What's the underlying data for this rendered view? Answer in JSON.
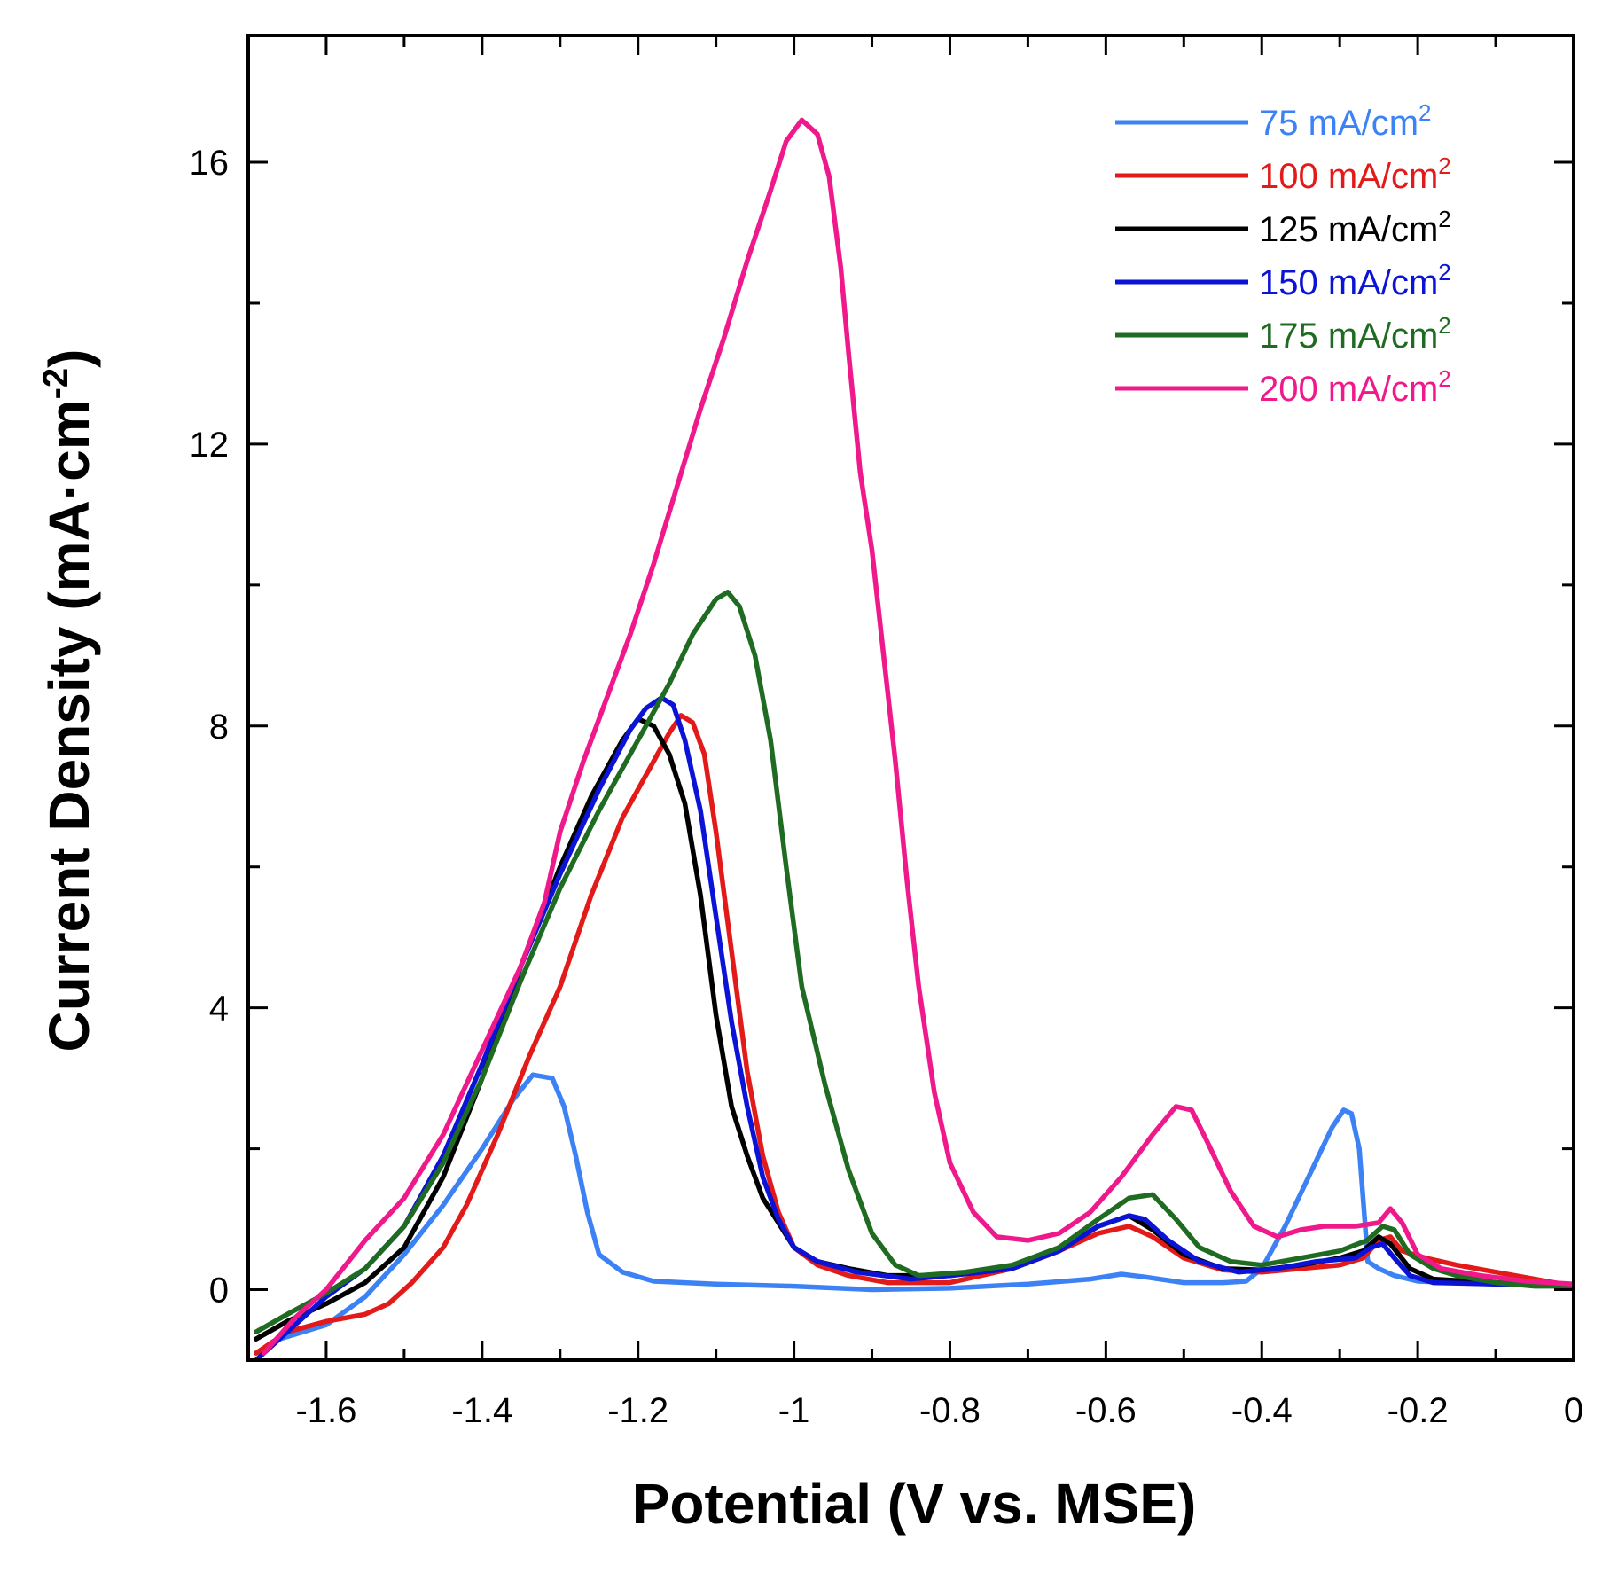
{
  "chart_data": {
    "type": "line",
    "xlabel": "Potential (V vs. MSE)",
    "ylabel_main": "Current Density (mA·cm",
    "ylabel_sup": "-2",
    "ylabel_close": ")",
    "xlim": [
      -1.7,
      0
    ],
    "ylim": [
      -1,
      17.8
    ],
    "x_ticks": [
      {
        "value": -1.6,
        "label": "-1.6"
      },
      {
        "value": -1.4,
        "label": "-1.4"
      },
      {
        "value": -1.2,
        "label": "-1.2"
      },
      {
        "value": -1.0,
        "label": "-1"
      },
      {
        "value": -0.8,
        "label": "-0.8"
      },
      {
        "value": -0.6,
        "label": "-0.6"
      },
      {
        "value": -0.4,
        "label": "-0.4"
      },
      {
        "value": -0.2,
        "label": "-0.2"
      },
      {
        "value": 0,
        "label": "0"
      }
    ],
    "y_ticks": [
      {
        "value": 0,
        "label": "0"
      },
      {
        "value": 4,
        "label": "4"
      },
      {
        "value": 8,
        "label": "8"
      },
      {
        "value": 12,
        "label": "12"
      },
      {
        "value": 16,
        "label": "16"
      }
    ],
    "x_minor_ticks": [
      -1.7,
      -1.5,
      -1.3,
      -1.1,
      -0.9,
      -0.7,
      -0.5,
      -0.3,
      -0.1
    ],
    "y_minor_ticks": [
      2,
      6,
      10,
      14
    ],
    "grid": false,
    "legend_position": "top-right",
    "series": [
      {
        "name": "75 mA/cm",
        "sup": "2",
        "color": "#3c82f5",
        "points": [
          [
            -1.69,
            -0.9
          ],
          [
            -1.66,
            -0.7
          ],
          [
            -1.6,
            -0.5
          ],
          [
            -1.55,
            -0.1
          ],
          [
            -1.5,
            0.5
          ],
          [
            -1.45,
            1.2
          ],
          [
            -1.4,
            2.0
          ],
          [
            -1.36,
            2.7
          ],
          [
            -1.335,
            3.05
          ],
          [
            -1.31,
            3.0
          ],
          [
            -1.295,
            2.6
          ],
          [
            -1.28,
            1.9
          ],
          [
            -1.265,
            1.1
          ],
          [
            -1.25,
            0.5
          ],
          [
            -1.22,
            0.25
          ],
          [
            -1.18,
            0.12
          ],
          [
            -1.1,
            0.08
          ],
          [
            -1.0,
            0.05
          ],
          [
            -0.9,
            0.0
          ],
          [
            -0.8,
            0.02
          ],
          [
            -0.7,
            0.08
          ],
          [
            -0.62,
            0.15
          ],
          [
            -0.58,
            0.22
          ],
          [
            -0.55,
            0.18
          ],
          [
            -0.5,
            0.1
          ],
          [
            -0.45,
            0.1
          ],
          [
            -0.42,
            0.12
          ],
          [
            -0.4,
            0.3
          ],
          [
            -0.37,
            0.9
          ],
          [
            -0.34,
            1.6
          ],
          [
            -0.31,
            2.3
          ],
          [
            -0.295,
            2.55
          ],
          [
            -0.285,
            2.5
          ],
          [
            -0.275,
            2.0
          ],
          [
            -0.268,
            1.0
          ],
          [
            -0.264,
            0.4
          ],
          [
            -0.25,
            0.3
          ],
          [
            -0.23,
            0.2
          ],
          [
            -0.2,
            0.12
          ],
          [
            -0.1,
            0.08
          ],
          [
            0,
            0.05
          ]
        ]
      },
      {
        "name": "100 mA/cm",
        "sup": "2",
        "color": "#e31a1a",
        "points": [
          [
            -1.69,
            -0.9
          ],
          [
            -1.65,
            -0.6
          ],
          [
            -1.6,
            -0.45
          ],
          [
            -1.55,
            -0.35
          ],
          [
            -1.52,
            -0.2
          ],
          [
            -1.49,
            0.1
          ],
          [
            -1.45,
            0.6
          ],
          [
            -1.42,
            1.2
          ],
          [
            -1.38,
            2.2
          ],
          [
            -1.34,
            3.3
          ],
          [
            -1.3,
            4.3
          ],
          [
            -1.26,
            5.6
          ],
          [
            -1.22,
            6.7
          ],
          [
            -1.18,
            7.5
          ],
          [
            -1.16,
            7.9
          ],
          [
            -1.145,
            8.15
          ],
          [
            -1.13,
            8.05
          ],
          [
            -1.115,
            7.6
          ],
          [
            -1.1,
            6.5
          ],
          [
            -1.08,
            4.8
          ],
          [
            -1.06,
            3.1
          ],
          [
            -1.04,
            1.9
          ],
          [
            -1.02,
            1.1
          ],
          [
            -1.0,
            0.6
          ],
          [
            -0.97,
            0.35
          ],
          [
            -0.93,
            0.2
          ],
          [
            -0.88,
            0.1
          ],
          [
            -0.8,
            0.1
          ],
          [
            -0.72,
            0.3
          ],
          [
            -0.66,
            0.55
          ],
          [
            -0.61,
            0.8
          ],
          [
            -0.57,
            0.9
          ],
          [
            -0.54,
            0.75
          ],
          [
            -0.5,
            0.45
          ],
          [
            -0.45,
            0.28
          ],
          [
            -0.4,
            0.25
          ],
          [
            -0.35,
            0.3
          ],
          [
            -0.3,
            0.35
          ],
          [
            -0.27,
            0.45
          ],
          [
            -0.25,
            0.7
          ],
          [
            -0.235,
            0.75
          ],
          [
            -0.22,
            0.55
          ],
          [
            -0.19,
            0.45
          ],
          [
            -0.15,
            0.35
          ],
          [
            -0.1,
            0.25
          ],
          [
            -0.05,
            0.15
          ],
          [
            0,
            0.05
          ]
        ]
      },
      {
        "name": "125 mA/cm",
        "sup": "2",
        "color": "#000000",
        "points": [
          [
            -1.69,
            -0.7
          ],
          [
            -1.65,
            -0.45
          ],
          [
            -1.6,
            -0.2
          ],
          [
            -1.55,
            0.1
          ],
          [
            -1.5,
            0.6
          ],
          [
            -1.45,
            1.6
          ],
          [
            -1.4,
            3.0
          ],
          [
            -1.35,
            4.6
          ],
          [
            -1.3,
            6.0
          ],
          [
            -1.26,
            7.0
          ],
          [
            -1.22,
            7.8
          ],
          [
            -1.2,
            8.1
          ],
          [
            -1.18,
            8.0
          ],
          [
            -1.16,
            7.6
          ],
          [
            -1.14,
            6.9
          ],
          [
            -1.12,
            5.6
          ],
          [
            -1.1,
            3.9
          ],
          [
            -1.08,
            2.6
          ],
          [
            -1.06,
            1.9
          ],
          [
            -1.04,
            1.3
          ],
          [
            -1.0,
            0.6
          ],
          [
            -0.97,
            0.4
          ],
          [
            -0.93,
            0.3
          ],
          [
            -0.88,
            0.2
          ],
          [
            -0.8,
            0.2
          ],
          [
            -0.72,
            0.3
          ],
          [
            -0.66,
            0.55
          ],
          [
            -0.61,
            0.9
          ],
          [
            -0.57,
            1.05
          ],
          [
            -0.54,
            0.85
          ],
          [
            -0.5,
            0.5
          ],
          [
            -0.45,
            0.3
          ],
          [
            -0.4,
            0.28
          ],
          [
            -0.35,
            0.35
          ],
          [
            -0.3,
            0.45
          ],
          [
            -0.27,
            0.55
          ],
          [
            -0.25,
            0.75
          ],
          [
            -0.235,
            0.65
          ],
          [
            -0.21,
            0.3
          ],
          [
            -0.18,
            0.15
          ],
          [
            -0.1,
            0.1
          ],
          [
            0,
            0.05
          ]
        ]
      },
      {
        "name": "150 mA/cm",
        "sup": "2",
        "color": "#0b14d6",
        "points": [
          [
            -1.69,
            -1.0
          ],
          [
            -1.65,
            -0.6
          ],
          [
            -1.6,
            -0.1
          ],
          [
            -1.55,
            0.3
          ],
          [
            -1.5,
            0.9
          ],
          [
            -1.45,
            1.9
          ],
          [
            -1.4,
            3.2
          ],
          [
            -1.35,
            4.6
          ],
          [
            -1.3,
            5.9
          ],
          [
            -1.25,
            7.1
          ],
          [
            -1.21,
            7.95
          ],
          [
            -1.19,
            8.25
          ],
          [
            -1.17,
            8.4
          ],
          [
            -1.155,
            8.3
          ],
          [
            -1.14,
            7.8
          ],
          [
            -1.12,
            6.8
          ],
          [
            -1.1,
            5.3
          ],
          [
            -1.08,
            3.8
          ],
          [
            -1.06,
            2.6
          ],
          [
            -1.04,
            1.6
          ],
          [
            -1.02,
            1.0
          ],
          [
            -1.0,
            0.6
          ],
          [
            -0.97,
            0.4
          ],
          [
            -0.92,
            0.25
          ],
          [
            -0.85,
            0.15
          ],
          [
            -0.8,
            0.2
          ],
          [
            -0.72,
            0.3
          ],
          [
            -0.66,
            0.55
          ],
          [
            -0.61,
            0.9
          ],
          [
            -0.57,
            1.05
          ],
          [
            -0.55,
            1.0
          ],
          [
            -0.52,
            0.7
          ],
          [
            -0.48,
            0.4
          ],
          [
            -0.43,
            0.25
          ],
          [
            -0.38,
            0.3
          ],
          [
            -0.33,
            0.4
          ],
          [
            -0.28,
            0.45
          ],
          [
            -0.26,
            0.6
          ],
          [
            -0.245,
            0.65
          ],
          [
            -0.23,
            0.45
          ],
          [
            -0.21,
            0.2
          ],
          [
            -0.18,
            0.1
          ],
          [
            -0.1,
            0.08
          ],
          [
            0,
            0.05
          ]
        ]
      },
      {
        "name": "175 mA/cm",
        "sup": "2",
        "color": "#1f6b22",
        "points": [
          [
            -1.69,
            -0.6
          ],
          [
            -1.65,
            -0.35
          ],
          [
            -1.6,
            -0.05
          ],
          [
            -1.55,
            0.3
          ],
          [
            -1.5,
            0.9
          ],
          [
            -1.45,
            1.8
          ],
          [
            -1.4,
            3.0
          ],
          [
            -1.35,
            4.4
          ],
          [
            -1.3,
            5.7
          ],
          [
            -1.25,
            6.8
          ],
          [
            -1.2,
            7.8
          ],
          [
            -1.16,
            8.6
          ],
          [
            -1.13,
            9.3
          ],
          [
            -1.1,
            9.8
          ],
          [
            -1.085,
            9.9
          ],
          [
            -1.07,
            9.7
          ],
          [
            -1.05,
            9.0
          ],
          [
            -1.03,
            7.8
          ],
          [
            -1.01,
            6.0
          ],
          [
            -0.99,
            4.3
          ],
          [
            -0.96,
            2.9
          ],
          [
            -0.93,
            1.7
          ],
          [
            -0.9,
            0.8
          ],
          [
            -0.87,
            0.35
          ],
          [
            -0.84,
            0.2
          ],
          [
            -0.78,
            0.25
          ],
          [
            -0.72,
            0.35
          ],
          [
            -0.66,
            0.6
          ],
          [
            -0.61,
            1.0
          ],
          [
            -0.57,
            1.3
          ],
          [
            -0.54,
            1.35
          ],
          [
            -0.51,
            1.0
          ],
          [
            -0.48,
            0.6
          ],
          [
            -0.44,
            0.4
          ],
          [
            -0.4,
            0.35
          ],
          [
            -0.35,
            0.45
          ],
          [
            -0.3,
            0.55
          ],
          [
            -0.265,
            0.7
          ],
          [
            -0.245,
            0.9
          ],
          [
            -0.23,
            0.85
          ],
          [
            -0.21,
            0.5
          ],
          [
            -0.18,
            0.3
          ],
          [
            -0.15,
            0.2
          ],
          [
            -0.1,
            0.1
          ],
          [
            -0.05,
            0.05
          ],
          [
            0,
            0.05
          ]
        ]
      },
      {
        "name": "200 mA/cm",
        "sup": "2",
        "color": "#f0198c",
        "points": [
          [
            -1.68,
            -0.9
          ],
          [
            -1.64,
            -0.4
          ],
          [
            -1.6,
            0.0
          ],
          [
            -1.55,
            0.7
          ],
          [
            -1.5,
            1.3
          ],
          [
            -1.45,
            2.2
          ],
          [
            -1.4,
            3.4
          ],
          [
            -1.35,
            4.6
          ],
          [
            -1.32,
            5.5
          ],
          [
            -1.3,
            6.5
          ],
          [
            -1.27,
            7.5
          ],
          [
            -1.24,
            8.4
          ],
          [
            -1.21,
            9.3
          ],
          [
            -1.18,
            10.3
          ],
          [
            -1.15,
            11.4
          ],
          [
            -1.12,
            12.5
          ],
          [
            -1.09,
            13.5
          ],
          [
            -1.06,
            14.6
          ],
          [
            -1.03,
            15.6
          ],
          [
            -1.01,
            16.3
          ],
          [
            -0.99,
            16.6
          ],
          [
            -0.97,
            16.4
          ],
          [
            -0.955,
            15.8
          ],
          [
            -0.94,
            14.5
          ],
          [
            -0.93,
            13.3
          ],
          [
            -0.915,
            11.6
          ],
          [
            -0.9,
            10.5
          ],
          [
            -0.885,
            9.0
          ],
          [
            -0.87,
            7.5
          ],
          [
            -0.855,
            5.8
          ],
          [
            -0.84,
            4.3
          ],
          [
            -0.82,
            2.8
          ],
          [
            -0.8,
            1.8
          ],
          [
            -0.77,
            1.1
          ],
          [
            -0.74,
            0.75
          ],
          [
            -0.7,
            0.7
          ],
          [
            -0.66,
            0.8
          ],
          [
            -0.62,
            1.1
          ],
          [
            -0.58,
            1.6
          ],
          [
            -0.54,
            2.2
          ],
          [
            -0.51,
            2.6
          ],
          [
            -0.49,
            2.55
          ],
          [
            -0.47,
            2.1
          ],
          [
            -0.44,
            1.4
          ],
          [
            -0.41,
            0.9
          ],
          [
            -0.38,
            0.75
          ],
          [
            -0.35,
            0.85
          ],
          [
            -0.32,
            0.9
          ],
          [
            -0.28,
            0.9
          ],
          [
            -0.25,
            0.95
          ],
          [
            -0.235,
            1.15
          ],
          [
            -0.22,
            0.95
          ],
          [
            -0.2,
            0.5
          ],
          [
            -0.17,
            0.3
          ],
          [
            -0.12,
            0.2
          ],
          [
            -0.06,
            0.12
          ],
          [
            0,
            0.08
          ]
        ]
      }
    ]
  }
}
